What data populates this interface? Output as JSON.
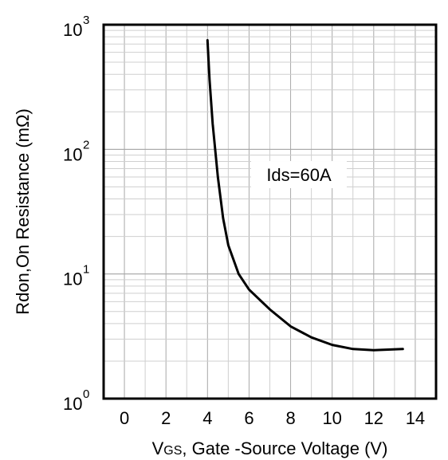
{
  "chart_data": {
    "type": "line",
    "xlabel": "VGS, Gate -Source Voltage (V)",
    "xlabel_prefix": "V",
    "xlabel_subscript": "GS",
    "xlabel_rest": ", Gate -Source Voltage (V)",
    "ylabel": "Rdon,On Resistance (mΩ)",
    "xlim": [
      -1,
      15
    ],
    "ylim": [
      1,
      1000
    ],
    "yscale": "log",
    "grid": true,
    "x_ticks": [
      0,
      2,
      4,
      6,
      8,
      10,
      12,
      14
    ],
    "y_ticks": [
      {
        "value": 1,
        "base": "10",
        "exp": "0"
      },
      {
        "value": 10,
        "base": "10",
        "exp": "1"
      },
      {
        "value": 100,
        "base": "10",
        "exp": "2"
      },
      {
        "value": 1000,
        "base": "10",
        "exp": "3"
      }
    ],
    "annotation": "Ids=60A",
    "series": [
      {
        "values": [
          {
            "x": 4.0,
            "y": 750
          },
          {
            "x": 4.1,
            "y": 360
          },
          {
            "x": 4.25,
            "y": 160
          },
          {
            "x": 4.5,
            "y": 60
          },
          {
            "x": 4.75,
            "y": 28
          },
          {
            "x": 5.0,
            "y": 17
          },
          {
            "x": 5.5,
            "y": 10
          },
          {
            "x": 6.0,
            "y": 7.5
          },
          {
            "x": 7.0,
            "y": 5.2
          },
          {
            "x": 8.0,
            "y": 3.8
          },
          {
            "x": 9.0,
            "y": 3.1
          },
          {
            "x": 10.0,
            "y": 2.7
          },
          {
            "x": 11.0,
            "y": 2.5
          },
          {
            "x": 12.0,
            "y": 2.45
          },
          {
            "x": 13.4,
            "y": 2.5
          }
        ]
      }
    ]
  }
}
